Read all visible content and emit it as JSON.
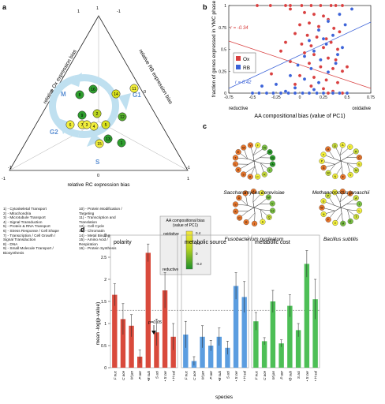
{
  "panels": {
    "a": "a",
    "b": "b",
    "c": "c",
    "d": "d"
  },
  "ternary": {
    "corner_top": "1",
    "corner_left": "-1",
    "corner_right": "-1",
    "corner_top_left": "1",
    "corner_top_right": "-1",
    "corner_bottom_left": "-1",
    "corner_bottom_right": "1",
    "zero_left": "0",
    "zero_right": "0",
    "zero_bottom": "0",
    "axis_left": "relative Ox expression bias",
    "axis_right": "relative RB expression bias",
    "axis_bottom": "relative RC expression bias",
    "phase_m": "M",
    "phase_g1": "G1",
    "phase_g2": "G2",
    "phase_s": "S",
    "nodes": [
      {
        "id": "16",
        "color": "#2e9e2e"
      },
      {
        "id": "8",
        "color": "#2e9e2e"
      },
      {
        "id": "14",
        "color": "#d9e21e"
      },
      {
        "id": "11",
        "color": "#f1ee3c"
      },
      {
        "id": "9",
        "color": "#2e9e2e"
      },
      {
        "id": "2",
        "color": "#b9d320"
      },
      {
        "id": "4",
        "color": "#f1ee3c"
      },
      {
        "id": "7",
        "color": "#f1ee3c"
      },
      {
        "id": "6",
        "color": "#f1ee3c"
      },
      {
        "id": "5",
        "color": "#d9e21e"
      },
      {
        "id": "3",
        "color": "#f1ee3c"
      },
      {
        "id": "12",
        "color": "#55b02c"
      },
      {
        "id": "13",
        "color": "#2e9e2e"
      },
      {
        "id": "1",
        "color": "#2e9e2e"
      },
      {
        "id": "15",
        "color": "#f1ee3c"
      }
    ]
  },
  "categories_legend": [
    "1) - Cytoskeletal Transport",
    "2) - Mitochondria",
    "3) - Microtubule Transport",
    "4) - Signal Transduction",
    "5) - Protein & RNA Transport",
    "6) - Stress Response / Cell Shape",
    "7) - Transcription / Cell Growth /",
    "      Signal Transduction",
    "8) - DNA",
    "9) - Small Molecule Transport /",
    "      Biosynthesis",
    "10) - Protein Modification /",
    "      Targeting",
    "11) - Transcription and",
    "      Translation",
    "12) - Cell Cycle",
    "13) - Chromatin",
    "14) - Metal Binding",
    "15) - Amino Acid /",
    "      Respiration",
    "16) - Protein Synthesis"
  ],
  "colorbar": {
    "title_line1": "AA compositional bias",
    "title_line2": "(value of PC1)",
    "top_label": "oxidative",
    "bottom_label": "reductive",
    "ticks": [
      "0.4",
      "0.2",
      "0",
      "-0.2"
    ]
  },
  "chart_data": [
    {
      "panel": "b",
      "type": "scatter",
      "title": "",
      "xlabel": "AA compositional bias (value of  PC1)",
      "ylabel": "fraction of genes expressed in YMC phase",
      "xlim": [
        -0.75,
        0.75
      ],
      "ylim": [
        0,
        1
      ],
      "x_ticks": [
        "-0.75",
        "-0.5",
        "-0.25",
        "0",
        "0.25",
        "0.5",
        "0.75"
      ],
      "y_ticks": [
        "0",
        "0.25",
        "0.5",
        "0.75",
        "1"
      ],
      "x_end_labels": {
        "left": "reductive",
        "right": "oxidative"
      },
      "legend": [
        "Ox",
        "RB"
      ],
      "legend_position": "left",
      "series": [
        {
          "name": "Ox",
          "color": "#d94040",
          "r": "r = -0.34",
          "points": [
            [
              -0.45,
              1
            ],
            [
              -0.31,
              1
            ],
            [
              -0.15,
              1
            ],
            [
              -0.1,
              1
            ],
            [
              0.02,
              1
            ],
            [
              0.12,
              1
            ],
            [
              0.22,
              1
            ],
            [
              0.33,
              1
            ],
            [
              0.38,
              1
            ],
            [
              0.45,
              1
            ],
            [
              -0.1,
              0.96
            ],
            [
              0.05,
              0.92
            ],
            [
              0.15,
              0.9
            ],
            [
              0.25,
              0.88
            ],
            [
              0.3,
              0.84
            ],
            [
              0.1,
              0.8
            ],
            [
              0.0,
              0.78
            ],
            [
              0.2,
              0.76
            ],
            [
              0.36,
              0.74
            ],
            [
              0.42,
              0.7
            ],
            [
              -0.05,
              0.68
            ],
            [
              0.08,
              0.66
            ],
            [
              0.18,
              0.64
            ],
            [
              0.28,
              0.62
            ],
            [
              0.33,
              0.58
            ],
            [
              -0.15,
              0.58
            ],
            [
              0.02,
              0.56
            ],
            [
              0.12,
              0.54
            ],
            [
              0.25,
              0.52
            ],
            [
              0.4,
              0.5
            ],
            [
              -0.2,
              0.48
            ],
            [
              0.05,
              0.46
            ],
            [
              0.15,
              0.44
            ],
            [
              0.3,
              0.4
            ],
            [
              0.38,
              0.38
            ],
            [
              -0.1,
              0.36
            ],
            [
              0.1,
              0.34
            ],
            [
              0.22,
              0.3
            ],
            [
              0.35,
              0.28
            ],
            [
              0.45,
              0.25
            ],
            [
              -0.3,
              0.22
            ],
            [
              0.0,
              0.2
            ],
            [
              0.15,
              0.18
            ],
            [
              0.28,
              0.15
            ],
            [
              0.4,
              0.12
            ],
            [
              -0.05,
              0.1
            ],
            [
              0.12,
              0.08
            ],
            [
              0.25,
              0.05
            ],
            [
              0.35,
              0.02
            ],
            [
              0.5,
              0.3
            ],
            [
              -0.2,
              0
            ],
            [
              0.3,
              0
            ],
            [
              0.45,
              0
            ]
          ]
        },
        {
          "name": "RB",
          "color": "#3c63d8",
          "r": "r = 0.42",
          "points": [
            [
              0.55,
              0.96
            ],
            [
              0.42,
              0.9
            ],
            [
              0.3,
              0.82
            ],
            [
              0.48,
              0.78
            ],
            [
              0.2,
              0.72
            ],
            [
              0.35,
              0.66
            ],
            [
              0.1,
              0.6
            ],
            [
              0.28,
              0.56
            ],
            [
              0.45,
              0.52
            ],
            [
              0.15,
              0.48
            ],
            [
              0.05,
              0.42
            ],
            [
              0.22,
              0.38
            ],
            [
              0.38,
              0.34
            ],
            [
              -0.02,
              0.32
            ],
            [
              0.12,
              0.28
            ],
            [
              0.3,
              0.24
            ],
            [
              -0.1,
              0.2
            ],
            [
              0.05,
              0.16
            ],
            [
              0.2,
              0.12
            ],
            [
              -0.25,
              0.1
            ],
            [
              -0.05,
              0.06
            ],
            [
              0.15,
              0.04
            ],
            [
              -0.4,
              0.08
            ],
            [
              -0.15,
              0.02
            ],
            [
              0.4,
              0.44
            ],
            [
              0.25,
              0.62
            ],
            [
              -0.5,
              0
            ],
            [
              -0.43,
              0
            ],
            [
              -0.35,
              0
            ],
            [
              -0.28,
              0
            ],
            [
              -0.2,
              0
            ],
            [
              -0.12,
              0
            ],
            [
              -0.05,
              0
            ],
            [
              0.03,
              0
            ],
            [
              0.1,
              0
            ],
            [
              0.18,
              0
            ],
            [
              0.25,
              0
            ],
            [
              0.35,
              0
            ],
            [
              0.42,
              0
            ],
            [
              0.5,
              0
            ]
          ]
        }
      ]
    },
    {
      "panel": "d",
      "type": "bar",
      "title": "",
      "xlabel": "species",
      "ylabel": "mean -log(p-value)",
      "ylim": [
        0,
        3
      ],
      "y_ticks": [
        "0",
        "0.5",
        "1",
        "1.5",
        "2",
        "2.5",
        "3"
      ],
      "threshold": 1.3,
      "threshold_label": "p=0.05",
      "categories": [
        "F nuc",
        "C ace",
        "M jan",
        "P aer",
        "•B sub",
        "S aci",
        "• S cer",
        "• H sal"
      ],
      "groups": [
        {
          "name": "polarity",
          "color": "#d94a3c",
          "values": [
            1.65,
            1.1,
            0.95,
            0.25,
            2.6,
            0.8,
            1.75,
            0.7
          ],
          "errors": [
            0.25,
            0.35,
            0.25,
            0.15,
            0.2,
            0.3,
            0.4,
            0.3
          ]
        },
        {
          "name": "metabolic source",
          "color": "#5b9de0",
          "values": [
            0.75,
            0.15,
            0.7,
            0.5,
            0.7,
            0.45,
            1.85,
            1.6
          ],
          "errors": [
            0.3,
            0.1,
            0.25,
            0.12,
            0.2,
            0.15,
            0.3,
            0.35
          ]
        },
        {
          "name": "metabolic cost",
          "color": "#4dbf56",
          "values": [
            1.05,
            0.6,
            1.5,
            0.55,
            1.4,
            0.85,
            2.35,
            1.55
          ],
          "errors": [
            0.2,
            0.08,
            0.25,
            0.08,
            0.25,
            0.15,
            0.3,
            0.45
          ]
        }
      ]
    }
  ],
  "trees": [
    {
      "name": "Saccharomyces cerevisiae"
    },
    {
      "name": "Methanococcus janaschii"
    },
    {
      "name": "Fusobacterium nucleatum"
    },
    {
      "name": "Bacillus subtilis"
    }
  ]
}
